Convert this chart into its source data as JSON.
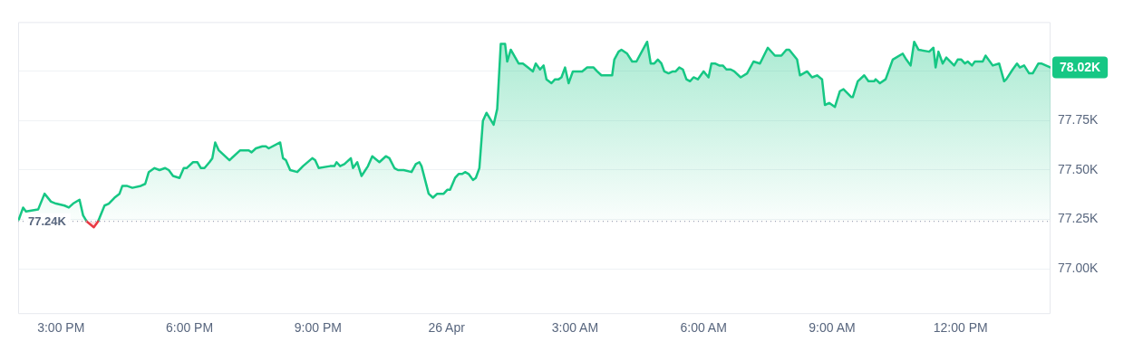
{
  "chart_data": {
    "type": "area",
    "xlim": [
      "--04-25T14:00",
      "--04-26T14:06"
    ],
    "ylim": [
      76.77,
      78.25
    ],
    "xticks": [
      {
        "value": "--04-25T15:00",
        "label": "3:00 PM"
      },
      {
        "value": "--04-25T18:00",
        "label": "6:00 PM"
      },
      {
        "value": "--04-25T21:00",
        "label": "9:00 PM"
      },
      {
        "value": "--04-26T00:00",
        "label": "26 Apr"
      },
      {
        "value": "--04-26T03:00",
        "label": "3:00 AM"
      },
      {
        "value": "--04-26T06:00",
        "label": "6:00 AM"
      },
      {
        "value": "--04-26T09:00",
        "label": "9:00 AM"
      },
      {
        "value": "--04-26T12:00",
        "label": "12:00 PM"
      }
    ],
    "yticks": [
      {
        "value": 77,
        "label": "77.00K"
      },
      {
        "value": 77.25,
        "label": "77.25K"
      },
      {
        "value": 77.5,
        "label": "77.50K"
      },
      {
        "value": 77.75,
        "label": "77.75K"
      },
      {
        "value": 78,
        "label": null
      }
    ],
    "grid": "y",
    "legend": false,
    "marker": "none",
    "line_style": "solid",
    "ref_lines": [
      {
        "axis": "y",
        "value": 77.24,
        "label": "77.24K",
        "color": "#a1a7bb",
        "line_style": "dotted"
      }
    ],
    "annotations": [
      {
        "text": "78.02K",
        "x": "--04-26T14:06",
        "y": 78.02
      }
    ],
    "series": [
      {
        "color": "#16c784",
        "x": [
          "--04-25T14:01",
          "--04-25T14:07",
          "--04-25T14:11",
          "--04-25T14:28",
          "--04-25T14:37",
          "--04-25T14:46",
          "--04-25T14:53",
          "--04-25T15:05",
          "--04-25T15:11",
          "--04-25T15:17",
          "--04-25T15:26",
          "--04-25T15:31",
          "--04-25T15:36",
          "--04-25T15:46",
          "--04-25T15:52",
          "--04-25T16:01",
          "--04-25T16:07",
          "--04-25T16:15",
          "--04-25T16:22",
          "--04-25T16:26",
          "--04-25T16:32",
          "--04-25T16:40",
          "--04-25T16:52",
          "--04-25T16:58",
          "--04-25T17:03",
          "--04-25T17:11",
          "--04-25T17:18",
          "--04-25T17:26",
          "--04-25T17:31",
          "--04-25T17:37",
          "--04-25T17:46",
          "--04-25T17:52",
          "--04-25T17:56",
          "--04-25T18:05",
          "--04-25T18:11",
          "--04-25T18:16",
          "--04-25T18:21",
          "--04-25T18:28",
          "--04-25T18:32",
          "--04-25T18:36",
          "--04-25T18:41",
          "--04-25T18:56",
          "--04-25T19:11",
          "--04-25T19:23",
          "--04-25T19:27",
          "--04-25T19:33",
          "--04-25T19:42",
          "--04-25T19:47",
          "--04-25T19:51",
          "--04-25T20:07",
          "--04-25T20:11",
          "--04-25T20:15",
          "--04-25T20:21",
          "--04-25T20:31",
          "--04-25T20:39",
          "--04-25T20:52",
          "--04-25T20:56",
          "--04-25T21:01",
          "--04-25T21:17",
          "--04-25T21:23",
          "--04-25T21:26",
          "--04-25T21:31",
          "--04-25T21:37",
          "--04-25T21:46",
          "--04-25T21:49",
          "--04-25T21:55",
          "--04-25T22:01",
          "--04-25T22:10",
          "--04-25T22:16",
          "--04-25T22:26",
          "--04-25T22:35",
          "--04-25T22:40",
          "--04-25T22:47",
          "--04-25T22:52",
          "--04-25T23:00",
          "--04-25T23:11",
          "--04-25T23:17",
          "--04-25T23:22",
          "--04-25T23:25",
          "--04-25T23:35",
          "--04-25T23:41",
          "--04-25T23:47",
          "--04-25T23:56",
          "--04-26T00:01",
          "--04-26T00:05",
          "--04-26T00:12",
          "--04-26T00:17",
          "--04-26T00:22",
          "--04-26T00:26",
          "--04-26T00:31",
          "--04-26T00:37",
          "--04-26T00:41",
          "--04-26T00:46",
          "--04-26T00:51",
          "--04-26T00:56",
          "--04-26T01:06",
          "--04-26T01:11",
          "--04-26T01:16",
          "--04-26T01:22",
          "--04-26T01:25",
          "--04-26T01:30",
          "--04-26T01:41",
          "--04-26T01:47",
          "--04-26T01:54",
          "--04-26T02:01",
          "--04-26T02:05",
          "--04-26T02:11",
          "--04-26T02:16",
          "--04-26T02:20",
          "--04-26T02:27",
          "--04-26T02:32",
          "--04-26T02:37",
          "--04-26T02:41",
          "--04-26T02:46",
          "--04-26T02:51",
          "--04-26T02:57",
          "--04-26T03:04",
          "--04-26T03:10",
          "--04-26T03:17",
          "--04-26T03:26",
          "--04-26T03:31",
          "--04-26T03:37",
          "--04-26T03:45",
          "--04-26T03:52",
          "--04-26T03:55",
          "--04-26T04:01",
          "--04-26T04:05",
          "--04-26T04:13",
          "--04-26T04:20",
          "--04-26T04:26",
          "--04-26T04:41",
          "--04-26T04:46",
          "--04-26T04:51",
          "--04-26T04:56",
          "--04-26T05:01",
          "--04-26T05:05",
          "--04-26T05:11",
          "--04-26T05:17",
          "--04-26T05:21",
          "--04-26T05:26",
          "--04-26T05:31",
          "--04-26T05:36",
          "--04-26T05:41",
          "--04-26T05:46",
          "--04-26T05:52",
          "--04-26T06:00",
          "--04-26T06:07",
          "--04-26T06:11",
          "--04-26T06:16",
          "--04-26T06:22",
          "--04-26T06:27",
          "--04-26T06:32",
          "--04-26T06:38",
          "--04-26T06:43",
          "--04-26T06:52",
          "--04-26T07:01",
          "--04-26T07:10",
          "--04-26T07:19",
          "--04-26T07:30",
          "--04-26T07:40",
          "--04-26T07:49",
          "--04-26T07:56",
          "--04-26T08:00",
          "--04-26T08:11",
          "--04-26T08:15",
          "--04-26T08:25",
          "--04-26T08:32",
          "--04-26T08:39",
          "--04-26T08:46",
          "--04-26T08:50",
          "--04-26T08:56",
          "--04-26T09:04",
          "--04-26T09:11",
          "--04-26T09:16",
          "--04-26T09:27",
          "--04-26T09:29",
          "--04-26T09:36",
          "--04-26T09:45",
          "--04-26T09:51",
          "--04-26T09:59",
          "--04-26T10:01",
          "--04-26T10:07",
          "--04-26T10:15",
          "--04-26T10:25",
          "--04-26T10:39",
          "--04-26T10:44",
          "--04-26T10:50",
          "--04-26T10:55",
          "--04-26T11:01",
          "--04-26T11:16",
          "--04-26T11:22",
          "--04-26T11:25",
          "--04-26T11:29",
          "--04-26T11:35",
          "--04-26T11:40",
          "--04-26T11:51",
          "--04-26T11:56",
          "--04-26T12:01",
          "--04-26T12:06",
          "--04-26T12:10",
          "--04-26T12:16",
          "--04-26T12:20",
          "--04-26T12:31",
          "--04-26T12:35",
          "--04-26T12:45",
          "--04-26T12:54",
          "--04-26T13:01",
          "--04-26T13:04",
          "--04-26T13:13",
          "--04-26T13:19",
          "--04-26T13:23",
          "--04-26T13:29",
          "--04-26T13:36",
          "--04-26T13:41",
          "--04-26T13:49",
          "--04-26T13:53",
          "--04-26T14:06"
        ],
        "values": [
          77.25,
          77.31,
          77.29,
          77.3,
          77.38,
          77.34,
          77.33,
          77.32,
          77.31,
          77.33,
          77.35,
          77.27,
          77.24,
          null,
          77.24,
          77.32,
          77.33,
          77.36,
          77.38,
          77.42,
          77.42,
          77.41,
          77.42,
          77.43,
          77.49,
          77.51,
          77.5,
          77.51,
          77.5,
          77.47,
          77.46,
          77.51,
          77.51,
          77.54,
          77.54,
          77.51,
          77.51,
          77.54,
          77.56,
          77.64,
          77.6,
          77.55,
          77.6,
          77.6,
          77.59,
          77.61,
          77.62,
          77.62,
          77.61,
          77.64,
          77.56,
          77.55,
          77.5,
          77.49,
          77.52,
          77.56,
          77.55,
          77.51,
          77.52,
          77.52,
          77.54,
          77.52,
          77.53,
          77.56,
          77.51,
          77.54,
          77.47,
          77.52,
          77.57,
          77.54,
          77.57,
          77.56,
          77.51,
          77.5,
          77.5,
          77.49,
          77.53,
          77.54,
          77.52,
          77.38,
          77.36,
          77.38,
          77.38,
          77.4,
          77.4,
          77.46,
          77.48,
          77.48,
          77.49,
          77.48,
          77.45,
          77.46,
          77.51,
          77.75,
          77.79,
          77.73,
          77.81,
          78.14,
          78.14,
          78.05,
          78.11,
          78.04,
          78.04,
          78.02,
          78.0,
          78.04,
          78.01,
          78.03,
          77.96,
          77.94,
          77.96,
          77.96,
          77.97,
          78.02,
          77.94,
          78.0,
          78.0,
          78.0,
          78.02,
          78.02,
          78.0,
          77.98,
          77.98,
          77.98,
          78.06,
          78.1,
          78.11,
          78.09,
          78.05,
          78.05,
          78.15,
          78.04,
          78.04,
          78.06,
          78.04,
          78.0,
          77.99,
          78.0,
          78.0,
          78.02,
          78.01,
          77.96,
          77.95,
          77.97,
          77.96,
          78.0,
          77.97,
          78.04,
          78.04,
          78.03,
          78.03,
          78.01,
          78.01,
          78.0,
          77.97,
          77.99,
          78.05,
          78.04,
          78.12,
          78.08,
          78.08,
          78.11,
          78.11,
          78.06,
          77.98,
          78.0,
          77.97,
          77.98,
          77.96,
          77.83,
          77.84,
          77.82,
          77.9,
          77.91,
          77.87,
          77.87,
          77.95,
          77.98,
          77.95,
          77.95,
          77.96,
          77.94,
          77.96,
          78.06,
          78.09,
          78.06,
          78.03,
          78.15,
          78.11,
          78.1,
          78.12,
          78.02,
          78.1,
          78.04,
          78.07,
          78.03,
          78.06,
          78.06,
          78.04,
          78.05,
          78.03,
          78.05,
          78.05,
          78.08,
          78.03,
          78.04,
          77.95,
          77.96,
          78.01,
          78.04,
          78.02,
          78.03,
          77.99,
          77.99,
          78.04,
          78.04,
          78.02
        ]
      },
      {
        "type": "line",
        "color": "#ea3943",
        "x": [
          "--04-25T15:36",
          "--04-25T15:46",
          "--04-25T15:52"
        ],
        "values": [
          77.24,
          77.21,
          77.24
        ]
      }
    ]
  }
}
